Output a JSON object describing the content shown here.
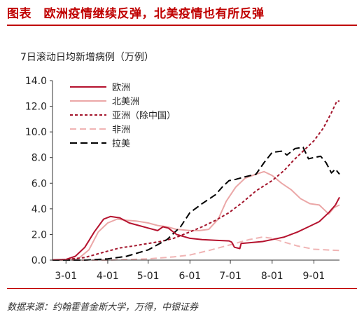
{
  "header": {
    "title": "图表　欧洲疫情继续反弹，北美疫情也有所反弹"
  },
  "footer": {
    "source": "数据来源：约翰霍普金斯大学，万得，中银证券"
  },
  "colors": {
    "accent": "#c00000"
  },
  "chart_data": {
    "type": "line",
    "title": "",
    "ylabel": "7日滚动日均新增病例（万例）",
    "ylim": [
      0,
      14
    ],
    "yticks": [
      "0.0",
      "2.0",
      "4.0",
      "6.0",
      "8.0",
      "10.0",
      "12.0",
      "14.0"
    ],
    "xlim": [
      "2020-02-20",
      "2020-09-20"
    ],
    "xticks": [
      {
        "date": "2020-03-01",
        "label": "3-01"
      },
      {
        "date": "2020-04-01",
        "label": "4-01"
      },
      {
        "date": "2020-05-01",
        "label": "5-01"
      },
      {
        "date": "2020-06-01",
        "label": "6-01"
      },
      {
        "date": "2020-07-01",
        "label": "7-01"
      },
      {
        "date": "2020-08-01",
        "label": "8-01"
      },
      {
        "date": "2020-09-01",
        "label": "9-01"
      }
    ],
    "legend_position": "top-left",
    "grid": false,
    "series": [
      {
        "name": "欧洲",
        "color": "#b5122e",
        "dash": "solid",
        "points": [
          [
            "2020-02-20",
            0.02
          ],
          [
            "2020-03-01",
            0.05
          ],
          [
            "2020-03-08",
            0.3
          ],
          [
            "2020-03-15",
            1.0
          ],
          [
            "2020-03-22",
            2.2
          ],
          [
            "2020-03-29",
            3.2
          ],
          [
            "2020-04-03",
            3.4
          ],
          [
            "2020-04-10",
            3.3
          ],
          [
            "2020-04-17",
            2.9
          ],
          [
            "2020-04-24",
            2.7
          ],
          [
            "2020-05-01",
            2.5
          ],
          [
            "2020-05-08",
            2.3
          ],
          [
            "2020-05-12",
            2.6
          ],
          [
            "2020-05-16",
            2.5
          ],
          [
            "2020-05-22",
            2.0
          ],
          [
            "2020-06-01",
            1.7
          ],
          [
            "2020-06-10",
            1.6
          ],
          [
            "2020-06-20",
            1.55
          ],
          [
            "2020-06-30",
            1.5
          ],
          [
            "2020-07-02",
            1.4
          ],
          [
            "2020-07-04",
            1.0
          ],
          [
            "2020-07-08",
            0.9
          ],
          [
            "2020-07-09",
            1.3
          ],
          [
            "2020-07-15",
            1.35
          ],
          [
            "2020-07-25",
            1.45
          ],
          [
            "2020-08-01",
            1.6
          ],
          [
            "2020-08-10",
            1.8
          ],
          [
            "2020-08-20",
            2.2
          ],
          [
            "2020-08-28",
            2.6
          ],
          [
            "2020-09-05",
            3.0
          ],
          [
            "2020-09-12",
            3.7
          ],
          [
            "2020-09-17",
            4.3
          ],
          [
            "2020-09-20",
            4.9
          ]
        ]
      },
      {
        "name": "北美洲",
        "color": "#eba7a7",
        "dash": "solid",
        "points": [
          [
            "2020-02-20",
            0.0
          ],
          [
            "2020-03-01",
            0.0
          ],
          [
            "2020-03-10",
            0.1
          ],
          [
            "2020-03-18",
            0.8
          ],
          [
            "2020-03-25",
            2.2
          ],
          [
            "2020-04-01",
            2.9
          ],
          [
            "2020-04-08",
            3.2
          ],
          [
            "2020-04-15",
            3.1
          ],
          [
            "2020-04-22",
            3.05
          ],
          [
            "2020-05-01",
            2.9
          ],
          [
            "2020-05-08",
            2.7
          ],
          [
            "2020-05-15",
            2.6
          ],
          [
            "2020-05-22",
            2.4
          ],
          [
            "2020-06-01",
            2.3
          ],
          [
            "2020-06-08",
            2.3
          ],
          [
            "2020-06-15",
            2.4
          ],
          [
            "2020-06-22",
            3.2
          ],
          [
            "2020-06-28",
            4.6
          ],
          [
            "2020-07-05",
            5.7
          ],
          [
            "2020-07-12",
            6.4
          ],
          [
            "2020-07-20",
            6.7
          ],
          [
            "2020-07-26",
            6.9
          ],
          [
            "2020-08-01",
            6.6
          ],
          [
            "2020-08-08",
            6.0
          ],
          [
            "2020-08-15",
            5.5
          ],
          [
            "2020-08-22",
            4.8
          ],
          [
            "2020-08-29",
            4.4
          ],
          [
            "2020-09-05",
            4.3
          ],
          [
            "2020-09-12",
            3.6
          ],
          [
            "2020-09-16",
            4.1
          ],
          [
            "2020-09-20",
            4.3
          ]
        ]
      },
      {
        "name": "亚洲（除中国）",
        "color": "#a3142b",
        "dash": "4,3",
        "points": [
          [
            "2020-02-20",
            0.0
          ],
          [
            "2020-03-01",
            0.05
          ],
          [
            "2020-03-15",
            0.2
          ],
          [
            "2020-03-25",
            0.5
          ],
          [
            "2020-04-01",
            0.7
          ],
          [
            "2020-04-10",
            0.95
          ],
          [
            "2020-04-20",
            1.1
          ],
          [
            "2020-05-01",
            1.3
          ],
          [
            "2020-05-10",
            1.45
          ],
          [
            "2020-05-20",
            1.7
          ],
          [
            "2020-06-01",
            2.2
          ],
          [
            "2020-06-10",
            2.6
          ],
          [
            "2020-06-20",
            3.1
          ],
          [
            "2020-06-30",
            3.7
          ],
          [
            "2020-07-10",
            4.5
          ],
          [
            "2020-07-20",
            5.4
          ],
          [
            "2020-08-01",
            6.2
          ],
          [
            "2020-08-10",
            7.0
          ],
          [
            "2020-08-17",
            7.8
          ],
          [
            "2020-08-25",
            8.6
          ],
          [
            "2020-09-01",
            9.3
          ],
          [
            "2020-09-08",
            10.3
          ],
          [
            "2020-09-14",
            11.5
          ],
          [
            "2020-09-18",
            12.4
          ],
          [
            "2020-09-20",
            12.4
          ]
        ]
      },
      {
        "name": "非洲",
        "color": "#f0b4b4",
        "dash": "9,5",
        "points": [
          [
            "2020-02-20",
            0.0
          ],
          [
            "2020-04-01",
            0.0
          ],
          [
            "2020-05-01",
            0.1
          ],
          [
            "2020-05-20",
            0.25
          ],
          [
            "2020-06-01",
            0.4
          ],
          [
            "2020-06-15",
            0.75
          ],
          [
            "2020-07-01",
            1.2
          ],
          [
            "2020-07-15",
            1.6
          ],
          [
            "2020-07-25",
            1.8
          ],
          [
            "2020-08-01",
            1.7
          ],
          [
            "2020-08-10",
            1.4
          ],
          [
            "2020-08-20",
            1.1
          ],
          [
            "2020-09-01",
            0.85
          ],
          [
            "2020-09-20",
            0.75
          ]
        ]
      },
      {
        "name": "拉美",
        "color": "#000000",
        "dash": "10,5",
        "points": [
          [
            "2020-02-20",
            0.0
          ],
          [
            "2020-03-15",
            0.0
          ],
          [
            "2020-04-01",
            0.1
          ],
          [
            "2020-04-15",
            0.3
          ],
          [
            "2020-05-01",
            0.8
          ],
          [
            "2020-05-15",
            1.6
          ],
          [
            "2020-05-25",
            2.6
          ],
          [
            "2020-06-01",
            3.7
          ],
          [
            "2020-06-10",
            4.4
          ],
          [
            "2020-06-20",
            5.1
          ],
          [
            "2020-06-25",
            5.7
          ],
          [
            "2020-06-30",
            6.2
          ],
          [
            "2020-07-05",
            6.3
          ],
          [
            "2020-07-12",
            6.5
          ],
          [
            "2020-07-20",
            6.7
          ],
          [
            "2020-07-26",
            7.6
          ],
          [
            "2020-08-01",
            8.4
          ],
          [
            "2020-08-08",
            8.5
          ],
          [
            "2020-08-12",
            8.2
          ],
          [
            "2020-08-18",
            8.7
          ],
          [
            "2020-08-24",
            8.8
          ],
          [
            "2020-08-28",
            7.9
          ],
          [
            "2020-09-01",
            8.0
          ],
          [
            "2020-09-06",
            8.1
          ],
          [
            "2020-09-10",
            7.6
          ],
          [
            "2020-09-14",
            6.8
          ],
          [
            "2020-09-17",
            7.1
          ],
          [
            "2020-09-20",
            6.7
          ]
        ]
      }
    ]
  }
}
